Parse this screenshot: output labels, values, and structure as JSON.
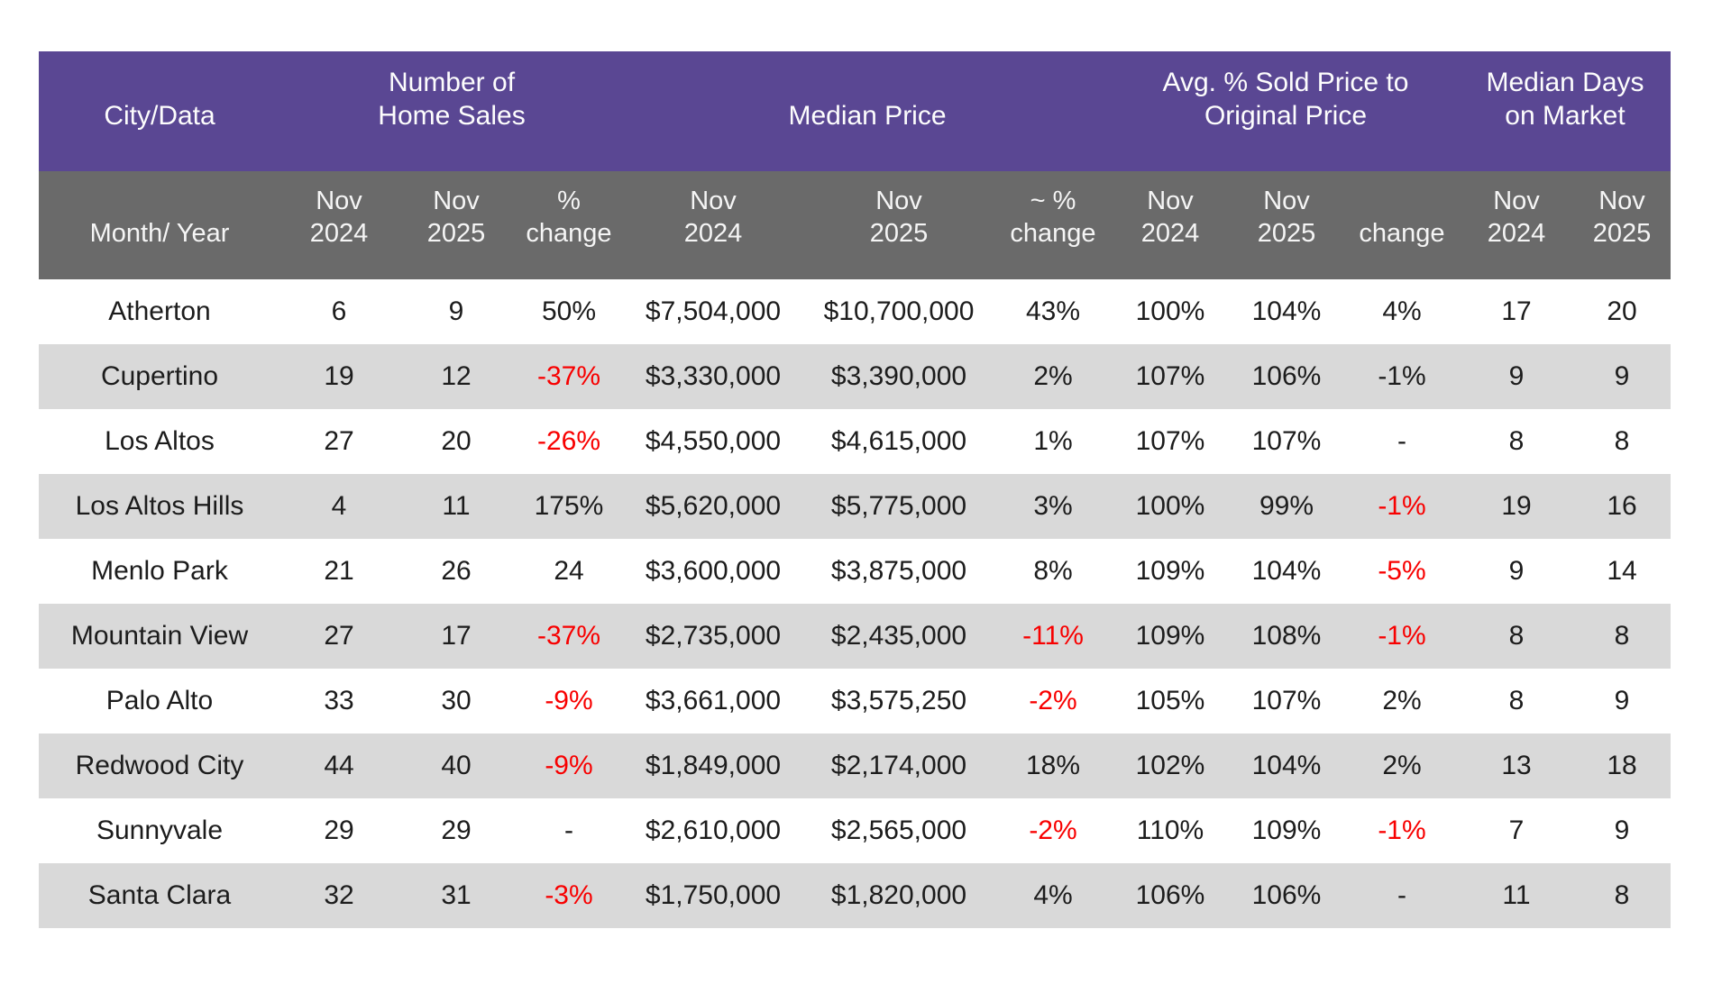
{
  "table": {
    "colors": {
      "group_header_bg": "#5a4793",
      "sub_header_bg": "#6a6a6a",
      "stripe_row_bg": "#d9d9d9",
      "text": "#1c1c1c",
      "negative_red": "#f80000"
    },
    "group_headers": [
      {
        "line1": "",
        "line2": "City/Data",
        "span": 1,
        "name": "group-header-city-data"
      },
      {
        "line1": "Number of",
        "line2": "Home Sales",
        "span": 3,
        "name": "group-header-number-of-home-sales"
      },
      {
        "line1": "",
        "line2": "Median Price",
        "span": 3,
        "name": "group-header-median-price"
      },
      {
        "line1": "Avg. % Sold Price to",
        "line2": "Original Price",
        "span": 3,
        "name": "group-header-avg-pct-sold-to-original-price"
      },
      {
        "line1": "Median Days",
        "line2": "on Market",
        "span": 2,
        "name": "group-header-median-days-on-market"
      }
    ],
    "sub_headers": [
      {
        "line1": "",
        "line2": "Month/ Year"
      },
      {
        "line1": "Nov",
        "line2": "2024"
      },
      {
        "line1": "Nov",
        "line2": "2025"
      },
      {
        "line1": "%",
        "line2": "change"
      },
      {
        "line1": "Nov",
        "line2": "2024"
      },
      {
        "line1": "Nov",
        "line2": "2025"
      },
      {
        "line1": "~ %",
        "line2": "change"
      },
      {
        "line1": "Nov",
        "line2": "2024"
      },
      {
        "line1": "Nov",
        "line2": "2025"
      },
      {
        "line1": "",
        "line2": "change"
      },
      {
        "line1": "Nov",
        "line2": "2024"
      },
      {
        "line1": "Nov",
        "line2": "2025"
      }
    ],
    "rows": [
      {
        "city": "Atherton",
        "cells": [
          {
            "text": "6"
          },
          {
            "text": "9"
          },
          {
            "text": "50%"
          },
          {
            "text": "$7,504,000"
          },
          {
            "text": "$10,700,000"
          },
          {
            "text": "43%"
          },
          {
            "text": "100%"
          },
          {
            "text": "104%"
          },
          {
            "text": "4%"
          },
          {
            "text": "17"
          },
          {
            "text": "20"
          }
        ]
      },
      {
        "city": "Cupertino",
        "cells": [
          {
            "text": "19"
          },
          {
            "text": "12"
          },
          {
            "text": "-37%",
            "red": true
          },
          {
            "text": "$3,330,000"
          },
          {
            "text": "$3,390,000"
          },
          {
            "text": "2%"
          },
          {
            "text": "107%"
          },
          {
            "text": "106%"
          },
          {
            "text": "-1%"
          },
          {
            "text": "9"
          },
          {
            "text": "9"
          }
        ]
      },
      {
        "city": "Los Altos",
        "cells": [
          {
            "text": "27"
          },
          {
            "text": "20"
          },
          {
            "text": "-26%",
            "red": true
          },
          {
            "text": "$4,550,000"
          },
          {
            "text": "$4,615,000"
          },
          {
            "text": "1%"
          },
          {
            "text": "107%"
          },
          {
            "text": "107%"
          },
          {
            "text": "-"
          },
          {
            "text": "8"
          },
          {
            "text": "8"
          }
        ]
      },
      {
        "city": "Los Altos Hills",
        "cells": [
          {
            "text": "4"
          },
          {
            "text": "11"
          },
          {
            "text": "175%"
          },
          {
            "text": "$5,620,000"
          },
          {
            "text": "$5,775,000"
          },
          {
            "text": "3%"
          },
          {
            "text": "100%"
          },
          {
            "text": "99%"
          },
          {
            "text": "-1%",
            "red": true
          },
          {
            "text": "19"
          },
          {
            "text": "16"
          }
        ]
      },
      {
        "city": "Menlo Park",
        "cells": [
          {
            "text": "21"
          },
          {
            "text": "26"
          },
          {
            "text": "24"
          },
          {
            "text": "$3,600,000"
          },
          {
            "text": "$3,875,000"
          },
          {
            "text": "8%"
          },
          {
            "text": "109%"
          },
          {
            "text": "104%"
          },
          {
            "text": "-5%",
            "red": true
          },
          {
            "text": "9"
          },
          {
            "text": "14"
          }
        ]
      },
      {
        "city": "Mountain View",
        "cells": [
          {
            "text": "27"
          },
          {
            "text": "17"
          },
          {
            "text": "-37%",
            "red": true
          },
          {
            "text": "$2,735,000"
          },
          {
            "text": "$2,435,000"
          },
          {
            "text": "-11%",
            "red": true
          },
          {
            "text": "109%"
          },
          {
            "text": "108%"
          },
          {
            "text": "-1%",
            "red": true
          },
          {
            "text": "8"
          },
          {
            "text": "8"
          }
        ]
      },
      {
        "city": "Palo Alto",
        "cells": [
          {
            "text": "33"
          },
          {
            "text": "30"
          },
          {
            "text": "-9%",
            "red": true
          },
          {
            "text": "$3,661,000"
          },
          {
            "text": "$3,575,250"
          },
          {
            "text": "-2%",
            "red": true
          },
          {
            "text": "105%"
          },
          {
            "text": "107%"
          },
          {
            "text": "2%"
          },
          {
            "text": "8"
          },
          {
            "text": "9"
          }
        ]
      },
      {
        "city": "Redwood City",
        "cells": [
          {
            "text": "44"
          },
          {
            "text": "40"
          },
          {
            "text": "-9%",
            "red": true
          },
          {
            "text": "$1,849,000"
          },
          {
            "text": "$2,174,000"
          },
          {
            "text": "18%"
          },
          {
            "text": "102%"
          },
          {
            "text": "104%"
          },
          {
            "text": "2%"
          },
          {
            "text": "13"
          },
          {
            "text": "18"
          }
        ]
      },
      {
        "city": "Sunnyvale",
        "cells": [
          {
            "text": "29"
          },
          {
            "text": "29"
          },
          {
            "text": "-"
          },
          {
            "text": "$2,610,000"
          },
          {
            "text": "$2,565,000"
          },
          {
            "text": "-2%",
            "red": true
          },
          {
            "text": "110%"
          },
          {
            "text": "109%"
          },
          {
            "text": "-1%",
            "red": true
          },
          {
            "text": "7"
          },
          {
            "text": "9"
          }
        ]
      },
      {
        "city": "Santa Clara",
        "cells": [
          {
            "text": "32"
          },
          {
            "text": "31"
          },
          {
            "text": "-3%",
            "red": true
          },
          {
            "text": "$1,750,000"
          },
          {
            "text": "$1,820,000"
          },
          {
            "text": "4%"
          },
          {
            "text": "106%"
          },
          {
            "text": "106%"
          },
          {
            "text": "-"
          },
          {
            "text": "11"
          },
          {
            "text": "8"
          }
        ]
      }
    ]
  },
  "chart_data": {
    "type": "table",
    "title": "City real estate statistics, Nov 2024 vs Nov 2025",
    "column_groups": [
      "City/Data",
      "Number of Home Sales",
      "Median Price",
      "Avg. % Sold Price to Original Price",
      "Median Days on Market"
    ],
    "columns": [
      "Month/ Year",
      "Nov 2024",
      "Nov 2025",
      "% change",
      "Nov 2024",
      "Nov 2025",
      "~ % change",
      "Nov 2024",
      "Nov 2025",
      "change",
      "Nov 2024",
      "Nov 2025"
    ],
    "rows": [
      [
        "Atherton",
        "6",
        "9",
        "50%",
        "$7,504,000",
        "$10,700,000",
        "43%",
        "100%",
        "104%",
        "4%",
        "17",
        "20"
      ],
      [
        "Cupertino",
        "19",
        "12",
        "-37%",
        "$3,330,000",
        "$3,390,000",
        "2%",
        "107%",
        "106%",
        "-1%",
        "9",
        "9"
      ],
      [
        "Los Altos",
        "27",
        "20",
        "-26%",
        "$4,550,000",
        "$4,615,000",
        "1%",
        "107%",
        "107%",
        "-",
        "8",
        "8"
      ],
      [
        "Los Altos Hills",
        "4",
        "11",
        "175%",
        "$5,620,000",
        "$5,775,000",
        "3%",
        "100%",
        "99%",
        "-1%",
        "19",
        "16"
      ],
      [
        "Menlo Park",
        "21",
        "26",
        "24",
        "$3,600,000",
        "$3,875,000",
        "8%",
        "109%",
        "104%",
        "-5%",
        "9",
        "14"
      ],
      [
        "Mountain View",
        "27",
        "17",
        "-37%",
        "$2,735,000",
        "$2,435,000",
        "-11%",
        "109%",
        "108%",
        "-1%",
        "8",
        "8"
      ],
      [
        "Palo Alto",
        "33",
        "30",
        "-9%",
        "$3,661,000",
        "$3,575,250",
        "-2%",
        "105%",
        "107%",
        "2%",
        "8",
        "9"
      ],
      [
        "Redwood City",
        "44",
        "40",
        "-9%",
        "$1,849,000",
        "$2,174,000",
        "18%",
        "102%",
        "104%",
        "2%",
        "13",
        "18"
      ],
      [
        "Sunnyvale",
        "29",
        "29",
        "-",
        "$2,610,000",
        "$2,565,000",
        "-2%",
        "110%",
        "109%",
        "-1%",
        "7",
        "9"
      ],
      [
        "Santa Clara",
        "32",
        "31",
        "-3%",
        "$1,750,000",
        "$1,820,000",
        "4%",
        "106%",
        "106%",
        "-",
        "11",
        "8"
      ]
    ],
    "layout": {
      "striped_rows": "even rows shaded #d9d9d9",
      "negative_values_red": true,
      "header_rows": 2
    }
  }
}
